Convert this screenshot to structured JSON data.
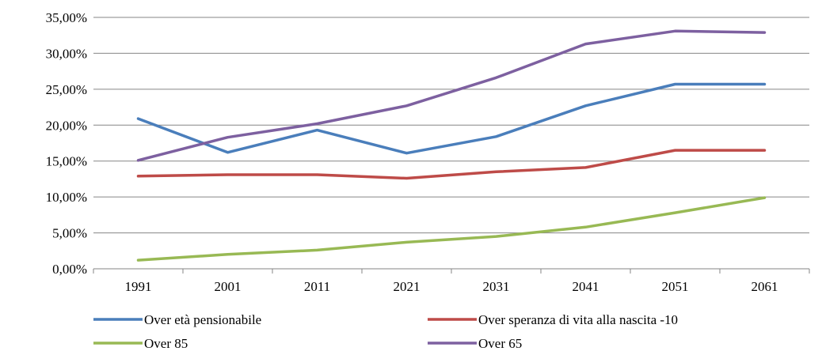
{
  "chart_data": {
    "type": "line",
    "title": "",
    "xlabel": "",
    "ylabel": "",
    "categories": [
      "1991",
      "2001",
      "2011",
      "2021",
      "2031",
      "2041",
      "2051",
      "2061"
    ],
    "ylim": [
      0,
      35
    ],
    "yticks": [
      0,
      5,
      10,
      15,
      20,
      25,
      30,
      35
    ],
    "ytick_labels": [
      "0,00%",
      "5,00%",
      "10,00%",
      "15,00%",
      "20,00%",
      "25,00%",
      "30,00%",
      "35,00%"
    ],
    "grid": "horizontal",
    "legend_position": "bottom",
    "series": [
      {
        "name": "Over età pensionabile",
        "color": "#4a7ebb",
        "values": [
          20.9,
          16.2,
          19.3,
          16.1,
          18.4,
          22.7,
          25.7,
          25.7
        ]
      },
      {
        "name": "Over speranza di vita alla nascita -10",
        "color": "#be4b48",
        "values": [
          12.9,
          13.1,
          13.1,
          12.6,
          13.5,
          14.1,
          16.5,
          16.5
        ]
      },
      {
        "name": "Over 85",
        "color": "#98b954",
        "values": [
          1.2,
          2.0,
          2.6,
          3.7,
          4.5,
          5.8,
          7.8,
          9.9
        ]
      },
      {
        "name": "Over 65",
        "color": "#7d60a0",
        "values": [
          15.1,
          18.3,
          20.2,
          22.7,
          26.6,
          31.3,
          33.1,
          32.9
        ]
      }
    ]
  }
}
